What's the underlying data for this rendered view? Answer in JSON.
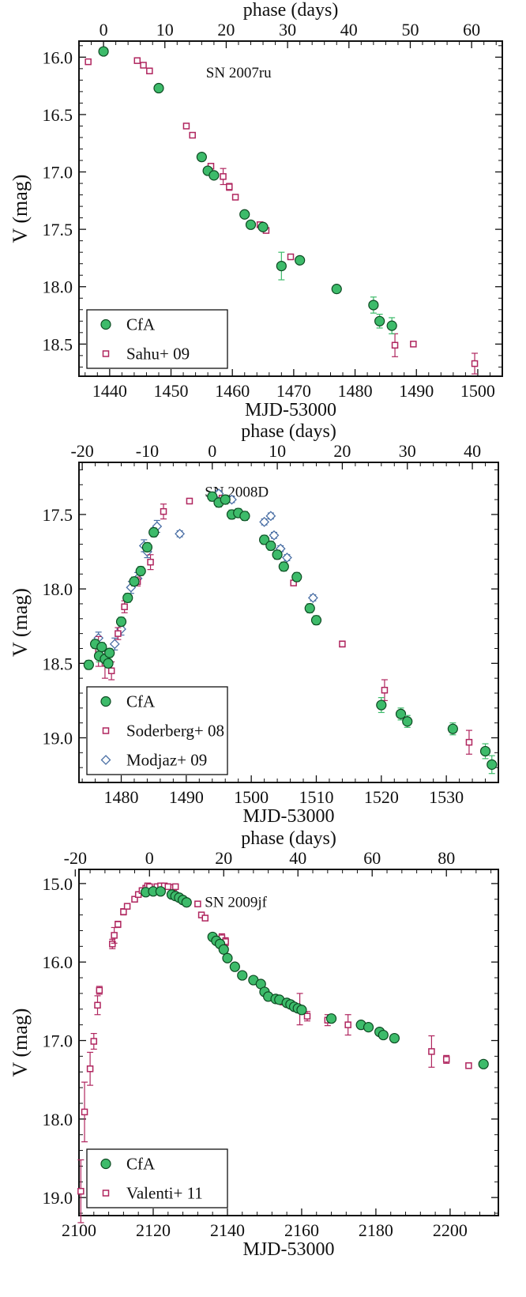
{
  "figure": {
    "colors": {
      "cfa": "#3dbb6a",
      "cfa_edge": "#0d4a22",
      "literature": "#b0265f",
      "modjaz": "#4a6fa5",
      "axis": "#111111"
    }
  },
  "chart_data": [
    {
      "type": "scatter",
      "title": "SN 2007ru",
      "xlabel": "MJD-53000",
      "ylabel": "V (mag)",
      "top_xlabel": "phase (days)",
      "xlim": [
        1435,
        1504
      ],
      "ylim": [
        18.78,
        15.86
      ],
      "invert_y": true,
      "phase_offset": 1439,
      "xticks": [
        1440,
        1450,
        1460,
        1470,
        1480,
        1490,
        1500
      ],
      "yticks": [
        16.0,
        16.5,
        17.0,
        17.5,
        18.0,
        18.5
      ],
      "top_ticks": [
        0,
        10,
        20,
        30,
        40,
        50,
        60
      ],
      "legend_position": "bottom-left",
      "series": [
        {
          "name": "CfA",
          "marker": "circle",
          "points": [
            [
              1439,
              15.95,
              0.01
            ],
            [
              1448,
              16.27,
              0.01
            ],
            [
              1455,
              16.87,
              0.01
            ],
            [
              1456,
              16.99,
              0.01
            ],
            [
              1457,
              17.03,
              0.01
            ],
            [
              1462,
              17.37,
              0.01
            ],
            [
              1463,
              17.46,
              0.01
            ],
            [
              1465,
              17.48,
              0.01
            ],
            [
              1468,
              17.82,
              0.12
            ],
            [
              1471,
              17.77,
              0.01
            ],
            [
              1477,
              18.02,
              0.01
            ],
            [
              1483,
              18.16,
              0.07
            ],
            [
              1484,
              18.3,
              0.06
            ],
            [
              1486,
              18.34,
              0.07
            ]
          ]
        },
        {
          "name": "Sahu+ 09",
          "marker": "square",
          "points": [
            [
              1436.5,
              16.04,
              0.01
            ],
            [
              1439,
              15.95,
              0.01
            ],
            [
              1444.5,
              16.03,
              0.01
            ],
            [
              1445.5,
              16.07,
              0.01
            ],
            [
              1446.5,
              16.12,
              0.01
            ],
            [
              1452.5,
              16.6,
              0.01
            ],
            [
              1453.5,
              16.68,
              0.01
            ],
            [
              1456.5,
              16.95,
              0.01
            ],
            [
              1458.5,
              17.04,
              0.07
            ],
            [
              1459.5,
              17.13,
              0.03
            ],
            [
              1460.5,
              17.22,
              0.02
            ],
            [
              1464.5,
              17.46,
              0.01
            ],
            [
              1465.5,
              17.51,
              0.01
            ],
            [
              1469.5,
              17.74,
              0.01
            ],
            [
              1486.5,
              18.51,
              0.1
            ],
            [
              1489.5,
              18.5,
              0.01
            ],
            [
              1499.5,
              18.67,
              0.09
            ]
          ]
        }
      ]
    },
    {
      "type": "scatter",
      "title": "SN 2008D",
      "xlabel": "MJD-53000",
      "ylabel": "V (mag)",
      "top_xlabel": "phase (days)",
      "xlim": [
        1473.5,
        1538
      ],
      "ylim": [
        19.3,
        17.15
      ],
      "invert_y": true,
      "phase_offset": 1494,
      "xticks": [
        1480,
        1490,
        1500,
        1510,
        1520,
        1530
      ],
      "yticks": [
        17.5,
        18.0,
        18.5,
        19.0
      ],
      "top_ticks": [
        -20,
        -10,
        0,
        10,
        20,
        30,
        40
      ],
      "legend_position": "bottom-left",
      "series": [
        {
          "name": "CfA",
          "marker": "circle",
          "points": [
            [
              1475,
              18.51,
              0.03
            ],
            [
              1476,
              18.37,
              0.03
            ],
            [
              1476.6,
              18.45,
              0.04
            ],
            [
              1477,
              18.39,
              0.03
            ],
            [
              1477.5,
              18.47,
              0.03
            ],
            [
              1478,
              18.5,
              0.03
            ],
            [
              1478.2,
              18.43,
              0.03
            ],
            [
              1480,
              18.22,
              0.03
            ],
            [
              1481,
              18.06,
              0.03
            ],
            [
              1482,
              17.95,
              0.03
            ],
            [
              1483,
              17.88,
              0.03
            ],
            [
              1484,
              17.72,
              0.03
            ],
            [
              1485,
              17.62,
              0.03
            ],
            [
              1494,
              17.38,
              0.03
            ],
            [
              1495,
              17.42,
              0.03
            ],
            [
              1496,
              17.4,
              0.03
            ],
            [
              1497,
              17.5,
              0.03
            ],
            [
              1498,
              17.49,
              0.03
            ],
            [
              1499,
              17.51,
              0.03
            ],
            [
              1502,
              17.67,
              0.03
            ],
            [
              1503,
              17.71,
              0.03
            ],
            [
              1504,
              17.77,
              0.03
            ],
            [
              1505,
              17.85,
              0.03
            ],
            [
              1507,
              17.92,
              0.03
            ],
            [
              1509,
              18.13,
              0.03
            ],
            [
              1510,
              18.21,
              0.03
            ],
            [
              1520,
              18.78,
              0.05
            ],
            [
              1523,
              18.84,
              0.04
            ],
            [
              1524,
              18.89,
              0.04
            ],
            [
              1531,
              18.94,
              0.04
            ],
            [
              1536,
              19.09,
              0.05
            ],
            [
              1537,
              19.18,
              0.06
            ]
          ]
        },
        {
          "name": "Soderberg+ 08",
          "marker": "square",
          "points": [
            [
              1476.5,
              18.42,
              0.1
            ],
            [
              1477.5,
              18.5,
              0.1
            ],
            [
              1478.5,
              18.55,
              0.06
            ],
            [
              1479.5,
              18.3,
              0.04
            ],
            [
              1480.5,
              18.12,
              0.04
            ],
            [
              1482.5,
              17.95,
              0.03
            ],
            [
              1484.5,
              17.82,
              0.05
            ],
            [
              1486.5,
              17.48,
              0.05
            ],
            [
              1490.5,
              17.41,
              0.01
            ],
            [
              1495.5,
              17.39,
              0.01
            ],
            [
              1506.5,
              17.96,
              0.01
            ],
            [
              1514,
              18.37,
              0.02
            ],
            [
              1520.5,
              18.68,
              0.07
            ],
            [
              1533.5,
              19.03,
              0.08
            ]
          ]
        },
        {
          "name": "Modjaz+ 09",
          "marker": "diamond",
          "points": [
            [
              1476.5,
              18.33,
              0.04
            ],
            [
              1479,
              18.37,
              0.04
            ],
            [
              1480,
              18.27,
              0.04
            ],
            [
              1481.5,
              17.99,
              0.04
            ],
            [
              1482.5,
              17.93,
              0.04
            ],
            [
              1483.5,
              17.71,
              0.04
            ],
            [
              1484,
              17.75,
              0.04
            ],
            [
              1485.5,
              17.58,
              0.04
            ],
            [
              1489,
              17.63,
              0.02
            ],
            [
              1494,
              17.38,
              0.02
            ],
            [
              1495,
              17.36,
              0.02
            ],
            [
              1497,
              17.4,
              0.02
            ],
            [
              1502,
              17.55,
              0.02
            ],
            [
              1503,
              17.51,
              0.02
            ],
            [
              1503.5,
              17.64,
              0.02
            ],
            [
              1504.5,
              17.73,
              0.02
            ],
            [
              1505.5,
              17.79,
              0.02
            ],
            [
              1509.5,
              18.06,
              0.02
            ]
          ]
        }
      ]
    },
    {
      "type": "scatter",
      "title": "SN 2009jf",
      "xlabel": "MJD-53000",
      "ylabel": "V (mag)",
      "top_xlabel": "phase (days)",
      "xlim": [
        2100,
        2213
      ],
      "ylim": [
        19.23,
        14.82
      ],
      "invert_y": true,
      "phase_offset": 2119,
      "xticks": [
        2100,
        2120,
        2140,
        2160,
        2180,
        2200
      ],
      "yticks": [
        15.0,
        16.0,
        17.0,
        18.0,
        19.0
      ],
      "top_ticks": [
        -20,
        0,
        20,
        40,
        60,
        80
      ],
      "legend_position": "bottom-left",
      "series": [
        {
          "name": "CfA",
          "marker": "circle",
          "points": [
            [
              2118,
              15.11,
              0.01
            ],
            [
              2120,
              15.1,
              0.01
            ],
            [
              2122,
              15.1,
              0.01
            ],
            [
              2125,
              15.14,
              0.01
            ],
            [
              2126,
              15.16,
              0.01
            ],
            [
              2127,
              15.18,
              0.01
            ],
            [
              2128,
              15.21,
              0.01
            ],
            [
              2129,
              15.24,
              0.01
            ],
            [
              2136,
              15.68,
              0.02
            ],
            [
              2137,
              15.73,
              0.02
            ],
            [
              2138,
              15.77,
              0.02
            ],
            [
              2139,
              15.84,
              0.02
            ],
            [
              2140,
              15.95,
              0.02
            ],
            [
              2142,
              16.06,
              0.02
            ],
            [
              2144,
              16.17,
              0.02
            ],
            [
              2147,
              16.23,
              0.02
            ],
            [
              2149,
              16.28,
              0.02
            ],
            [
              2150,
              16.38,
              0.02
            ],
            [
              2151,
              16.44,
              0.02
            ],
            [
              2153,
              16.47,
              0.02
            ],
            [
              2154,
              16.48,
              0.02
            ],
            [
              2156,
              16.52,
              0.02
            ],
            [
              2157,
              16.54,
              0.02
            ],
            [
              2158,
              16.57,
              0.02
            ],
            [
              2159,
              16.59,
              0.02
            ],
            [
              2160,
              16.61,
              0.02
            ],
            [
              2168,
              16.72,
              0.03
            ],
            [
              2176,
              16.8,
              0.03
            ],
            [
              2178,
              16.83,
              0.03
            ],
            [
              2181,
              16.89,
              0.03
            ],
            [
              2182,
              16.93,
              0.03
            ],
            [
              2185,
              16.97,
              0.03
            ],
            [
              2209,
              17.3,
              0.03
            ]
          ]
        },
        {
          "name": "Valenti+ 11",
          "marker": "square",
          "points": [
            [
              2100.5,
              18.92,
              0.4
            ],
            [
              2101.5,
              17.91,
              0.38
            ],
            [
              2103,
              17.36,
              0.21
            ],
            [
              2104,
              17.01,
              0.1
            ],
            [
              2105,
              16.55,
              0.12
            ],
            [
              2105.5,
              16.36,
              0.05
            ],
            [
              2109,
              15.77,
              0.06
            ],
            [
              2109.5,
              15.66,
              0.1
            ],
            [
              2110.5,
              15.52,
              0.04
            ],
            [
              2112,
              15.36,
              0.04
            ],
            [
              2113,
              15.29,
              0.03
            ],
            [
              2115,
              15.2,
              0.02
            ],
            [
              2116,
              15.14,
              0.02
            ],
            [
              2117,
              15.09,
              0.02
            ],
            [
              2118,
              15.06,
              0.02
            ],
            [
              2118.5,
              15.03,
              0.02
            ],
            [
              2119,
              15.04,
              0.02
            ],
            [
              2121,
              15.04,
              0.02
            ],
            [
              2122,
              15.03,
              0.02
            ],
            [
              2123,
              15.03,
              0.02
            ],
            [
              2124,
              15.04,
              0.02
            ],
            [
              2125.5,
              15.05,
              0.02
            ],
            [
              2126,
              15.04,
              0.02
            ],
            [
              2132,
              15.26,
              0.02
            ],
            [
              2133,
              15.4,
              0.02
            ],
            [
              2134,
              15.44,
              0.02
            ],
            [
              2138.5,
              15.69,
              0.05
            ],
            [
              2139.5,
              15.74,
              0.05
            ],
            [
              2149,
              16.28,
              0.02
            ],
            [
              2155,
              16.51,
              0.02
            ],
            [
              2159.5,
              16.6,
              0.2
            ],
            [
              2161.5,
              16.69,
              0.06
            ],
            [
              2167,
              16.74,
              0.07
            ],
            [
              2172.5,
              16.8,
              0.13
            ],
            [
              2195,
              17.14,
              0.2
            ],
            [
              2199,
              17.24,
              0.05
            ],
            [
              2205,
              17.32,
              0.02
            ]
          ]
        }
      ]
    }
  ]
}
